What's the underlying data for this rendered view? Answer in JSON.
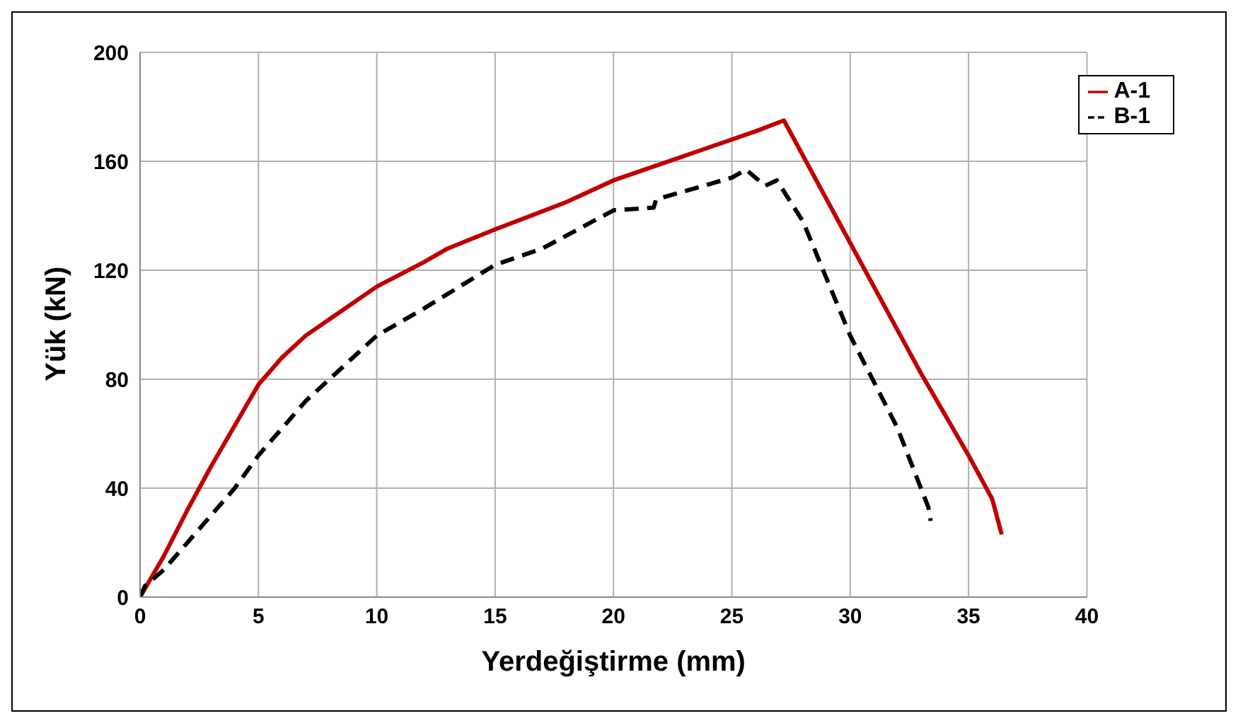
{
  "chart_data": {
    "type": "line",
    "xlabel": "Yerdeğiştirme (mm)",
    "ylabel": "Yük (kN)",
    "xlim": [
      0,
      40
    ],
    "xticks": [
      0,
      5,
      10,
      15,
      20,
      25,
      30,
      35,
      40
    ],
    "ylim": [
      0,
      200
    ],
    "yticks": [
      0,
      40,
      80,
      120,
      160,
      200
    ],
    "grid": true,
    "legend": "top right",
    "marker": "none",
    "series": [
      {
        "name": "A-1",
        "color": "#c00000",
        "line_style": "solid",
        "x": [
          0,
          1,
          2,
          3,
          4,
          5,
          6,
          7,
          8,
          9,
          10,
          12,
          13,
          15,
          18,
          20,
          22,
          24,
          26,
          27.2,
          30,
          33,
          35,
          36,
          36.4
        ],
        "values": [
          0,
          15,
          32,
          48,
          63,
          78,
          88,
          96,
          102,
          108,
          114,
          123,
          128,
          135,
          145,
          153,
          159,
          165,
          171,
          175,
          130,
          82,
          52,
          36,
          23
        ]
      },
      {
        "name": "B-1",
        "color": "#000000",
        "line_style": "dashed",
        "x": [
          0,
          0.2,
          1,
          2,
          3,
          4,
          5,
          6,
          7,
          8,
          9,
          10,
          12,
          15,
          17,
          20,
          21.7,
          21.8,
          23,
          25,
          25.6,
          26.4,
          26.9,
          28,
          30,
          32,
          33.3,
          33.4
        ],
        "values": [
          0,
          4,
          10,
          20,
          30,
          40,
          52,
          62,
          72,
          80,
          88,
          96,
          106,
          122,
          128,
          142,
          143,
          146,
          149,
          154,
          157,
          151,
          153,
          138,
          96,
          62,
          33,
          28
        ]
      }
    ]
  }
}
